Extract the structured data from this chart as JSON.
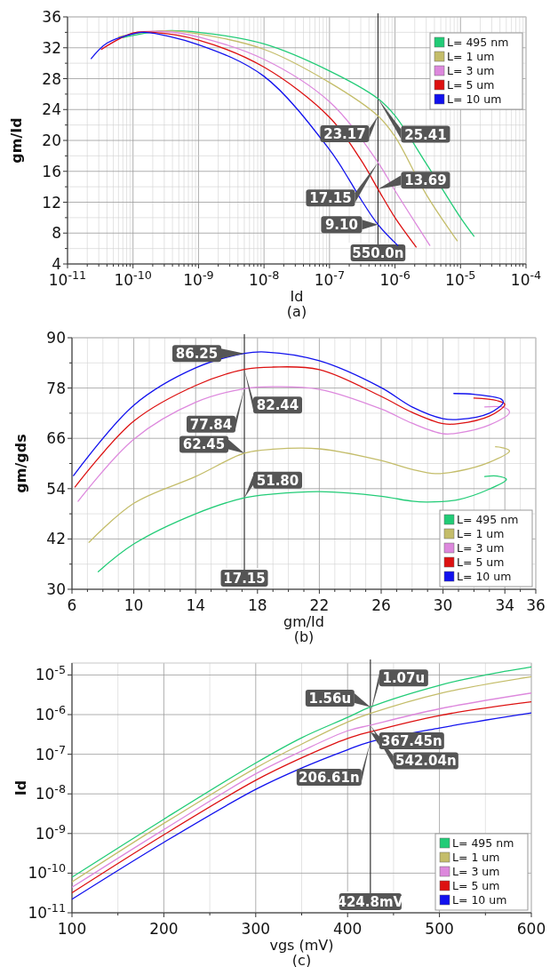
{
  "chart_data": [
    {
      "type": "line",
      "xlabel": "Id",
      "ylabel": "gm/Id",
      "log": "x",
      "grid": true,
      "legend": "top right",
      "xlim": [
        1e-11,
        0.0001
      ],
      "ylim": [
        4,
        36
      ],
      "xticks": [
        {
          "value": 1e-11,
          "label": "10$^{-11}$"
        },
        {
          "value": 1e-10,
          "label": "10$^{-10}$"
        },
        {
          "value": 1e-09,
          "label": "10$^{-9}$"
        },
        {
          "value": 1e-08,
          "label": "10$^{-8}$"
        },
        {
          "value": 1e-07,
          "label": "10$^{-7}$"
        },
        {
          "value": 1e-06,
          "label": "10$^{-6}$"
        },
        {
          "value": 1e-05,
          "label": "10$^{-5}$"
        },
        {
          "value": 0.0001,
          "label": "10$^{-4}$"
        },
        {
          "value": 2e-11,
          "label": null
        },
        {
          "value": 3e-11,
          "label": null
        },
        {
          "value": 4e-11,
          "label": null
        },
        {
          "value": 5e-11,
          "label": null
        },
        {
          "value": 6e-11,
          "label": null
        },
        {
          "value": 7e-11,
          "label": null
        },
        {
          "value": 8e-11,
          "label": null
        },
        {
          "value": 9e-11,
          "label": null
        },
        {
          "value": 2e-10,
          "label": null
        },
        {
          "value": 3e-10,
          "label": null
        },
        {
          "value": 4e-10,
          "label": null
        },
        {
          "value": 5e-10,
          "label": null
        },
        {
          "value": 6e-10,
          "label": null
        },
        {
          "value": 7e-10,
          "label": null
        },
        {
          "value": 8e-10,
          "label": null
        },
        {
          "value": 9e-10,
          "label": null
        },
        {
          "value": 2e-09,
          "label": null
        },
        {
          "value": 3e-09,
          "label": null
        },
        {
          "value": 4e-09,
          "label": null
        },
        {
          "value": 5e-09,
          "label": null
        },
        {
          "value": 6e-09,
          "label": null
        },
        {
          "value": 7e-09,
          "label": null
        },
        {
          "value": 8e-09,
          "label": null
        },
        {
          "value": 9e-09,
          "label": null
        },
        {
          "value": 2e-08,
          "label": null
        },
        {
          "value": 3e-08,
          "label": null
        },
        {
          "value": 4e-08,
          "label": null
        },
        {
          "value": 5e-08,
          "label": null
        },
        {
          "value": 6e-08,
          "label": null
        },
        {
          "value": 7e-08,
          "label": null
        },
        {
          "value": 8e-08,
          "label": null
        },
        {
          "value": 9e-08,
          "label": null
        },
        {
          "value": 2e-07,
          "label": null
        },
        {
          "value": 3e-07,
          "label": null
        },
        {
          "value": 4e-07,
          "label": null
        },
        {
          "value": 5e-07,
          "label": null
        },
        {
          "value": 6e-07,
          "label": null
        },
        {
          "value": 7e-07,
          "label": null
        },
        {
          "value": 8e-07,
          "label": null
        },
        {
          "value": 9e-07,
          "label": null
        },
        {
          "value": 2e-06,
          "label": null
        },
        {
          "value": 3e-06,
          "label": null
        },
        {
          "value": 4e-06,
          "label": null
        },
        {
          "value": 5e-06,
          "label": null
        },
        {
          "value": 6e-06,
          "label": null
        },
        {
          "value": 7e-06,
          "label": null
        },
        {
          "value": 8e-06,
          "label": null
        },
        {
          "value": 9e-06,
          "label": null
        },
        {
          "value": 2e-05,
          "label": null
        },
        {
          "value": 3e-05,
          "label": null
        },
        {
          "value": 4e-05,
          "label": null
        },
        {
          "value": 5e-05,
          "label": null
        },
        {
          "value": 6e-05,
          "label": null
        },
        {
          "value": 7e-05,
          "label": null
        },
        {
          "value": 8e-05,
          "label": null
        },
        {
          "value": 9e-05,
          "label": null
        }
      ],
      "yticks": [
        4,
        8,
        12,
        16,
        20,
        24,
        28,
        32,
        36,
        {
          "value": 6,
          "label": null
        },
        {
          "value": 10,
          "label": null
        },
        {
          "value": 14,
          "label": null
        },
        {
          "value": 18,
          "label": null
        },
        {
          "value": 22,
          "label": null
        },
        {
          "value": 26,
          "label": null
        },
        {
          "value": 30,
          "label": null
        },
        {
          "value": 34,
          "label": null
        }
      ],
      "series": [
        {
          "name": "L= 495 nm",
          "color": "#22cc77",
          "x": [
            7e-11,
            1e-10,
            3e-10,
            1e-09,
            1e-08,
            1e-07,
            5.5e-07,
            1e-06,
            3e-06,
            1e-05,
            1.6e-05
          ],
          "values": [
            33.3,
            33.6,
            34.2,
            34.0,
            32.5,
            29,
            25.41,
            23.2,
            17,
            10,
            7.6
          ]
        },
        {
          "name": "L= 1 um",
          "color": "#c4bd6a",
          "x": [
            6e-11,
            1e-10,
            3e-10,
            1e-09,
            1e-08,
            1e-07,
            5.5e-07,
            1e-06,
            3e-06,
            8.9e-06
          ],
          "values": [
            33.4,
            33.8,
            34.2,
            33.8,
            31.8,
            27.5,
            23.17,
            20.5,
            13,
            7.0
          ]
        },
        {
          "name": "L= 3 um",
          "color": "#dd88dd",
          "x": [
            3.3e-11,
            1e-10,
            3e-10,
            1e-09,
            1e-08,
            1e-07,
            5.5e-07,
            1e-06,
            3.4e-06
          ],
          "values": [
            31.8,
            33.9,
            34.1,
            33.4,
            30.5,
            25.0,
            17.15,
            13.5,
            6.4
          ]
        },
        {
          "name": "L= 5 um",
          "color": "#dd1111",
          "x": [
            3.3e-11,
            1e-10,
            2e-10,
            1e-09,
            1e-08,
            1e-07,
            3e-07,
            5.5e-07,
            1e-06,
            2.1e-06
          ],
          "values": [
            31.8,
            33.9,
            34.0,
            33.0,
            29.5,
            23.0,
            17.5,
            13.69,
            10,
            6.2
          ]
        },
        {
          "name": "L= 10 um",
          "color": "#1111ee",
          "x": [
            2.3e-11,
            4e-11,
            1e-10,
            1.5e-10,
            1e-09,
            1e-08,
            1e-07,
            2e-07,
            3e-07,
            5.5e-07,
            1.1e-06
          ],
          "values": [
            30.6,
            32.6,
            33.8,
            34.0,
            32.4,
            28.3,
            18.8,
            14.9,
            12.4,
            9.1,
            6.4
          ]
        }
      ],
      "ref_lines": [
        {
          "axis": "x",
          "value": 5.5e-07,
          "label": "550.0n",
          "color": "#333333"
        }
      ],
      "annotations": [
        {
          "text": "25.41",
          "x": 5.5e-07,
          "y": 25.41
        },
        {
          "text": "17.15",
          "x": 5.5e-07,
          "y": 17.15
        },
        {
          "text": "23.17",
          "x": 5.5e-07,
          "y": 23.17
        },
        {
          "text": "9.10",
          "x": 5.5e-07,
          "y": 9.1
        },
        {
          "text": "13.69",
          "x": 5.5e-07,
          "y": 13.69
        },
        "(a)"
      ]
    },
    {
      "type": "line",
      "xlabel": "gm/Id",
      "ylabel": "gm/gds",
      "grid": true,
      "legend": "bottom right",
      "xlim": [
        6,
        36
      ],
      "ylim": [
        30,
        90
      ],
      "xticks": [
        6,
        10,
        14,
        18,
        22,
        26,
        30,
        34,
        36,
        {
          "value": 7,
          "label": null
        },
        {
          "value": 8,
          "label": null
        },
        {
          "value": 9,
          "label": null
        },
        {
          "value": 11,
          "label": null
        },
        {
          "value": 12,
          "label": null
        },
        {
          "value": 13,
          "label": null
        },
        {
          "value": 15,
          "label": null
        },
        {
          "value": 16,
          "label": null
        },
        {
          "value": 17,
          "label": null
        },
        {
          "value": 19,
          "label": null
        },
        {
          "value": 20,
          "label": null
        },
        {
          "value": 21,
          "label": null
        },
        {
          "value": 23,
          "label": null
        },
        {
          "value": 24,
          "label": null
        },
        {
          "value": 25,
          "label": null
        },
        {
          "value": 27,
          "label": null
        },
        {
          "value": 28,
          "label": null
        },
        {
          "value": 29,
          "label": null
        },
        {
          "value": 31,
          "label": null
        },
        {
          "value": 32,
          "label": null
        },
        {
          "value": 33,
          "label": null
        },
        {
          "value": 35,
          "label": null
        }
      ],
      "yticks": [
        30,
        42,
        54,
        66,
        78,
        90,
        {
          "value": 36,
          "label": null
        },
        {
          "value": 48,
          "label": null
        },
        {
          "value": 60,
          "label": null
        },
        {
          "value": 72,
          "label": null
        },
        {
          "value": 84,
          "label": null
        }
      ],
      "series": [
        {
          "name": "L= 495 nm",
          "color": "#22cc77",
          "x": [
            7.7,
            10,
            14,
            17.15,
            19,
            22,
            26,
            28,
            29,
            31,
            33,
            34.1,
            33.5,
            32.7
          ],
          "values": [
            34.2,
            40.8,
            48.0,
            51.8,
            52.7,
            53.3,
            52.2,
            51.0,
            50.8,
            51.4,
            53.9,
            56.2,
            57,
            56.9
          ]
        },
        {
          "name": "L= 1 um",
          "color": "#c4bd6a",
          "x": [
            7.1,
            10,
            14,
            17.15,
            19,
            22,
            26,
            28,
            29.5,
            31,
            33,
            34.3,
            33.8,
            33.4
          ],
          "values": [
            41.2,
            50.5,
            56.9,
            62.45,
            63.4,
            63.5,
            60.7,
            58.6,
            57.6,
            58.2,
            60.3,
            63.0,
            63.8,
            64.0
          ]
        },
        {
          "name": "L= 3 um",
          "color": "#dd88dd",
          "x": [
            6.4,
            10,
            14,
            17.15,
            19,
            22,
            26,
            28,
            30,
            31,
            33,
            34.3,
            34,
            32.7
          ],
          "values": [
            51.0,
            65.8,
            74.6,
            77.84,
            78.3,
            77.7,
            73.0,
            69.6,
            67.1,
            67.3,
            69.2,
            72.2,
            73.3,
            73.5
          ]
        },
        {
          "name": "L= 5 um",
          "color": "#dd1111",
          "x": [
            6.2,
            10,
            14,
            17.15,
            19,
            22,
            26,
            28,
            30,
            31,
            33,
            34.0,
            33.5,
            32.0
          ],
          "values": [
            54.4,
            70.1,
            78.6,
            82.44,
            83.0,
            82.4,
            76.0,
            72.2,
            69.5,
            69.5,
            71.3,
            74.1,
            75,
            75.6
          ]
        },
        {
          "name": "L= 10 um",
          "color": "#1111ee",
          "x": [
            6.1,
            10,
            14,
            17.15,
            18.5,
            22,
            26,
            28,
            30,
            31,
            33,
            33.9,
            33.75,
            32,
            30.7
          ],
          "values": [
            57.1,
            73.9,
            82.8,
            86.25,
            86.6,
            84.5,
            78.1,
            73.5,
            70.7,
            70.5,
            72,
            74.6,
            75.4,
            76.5,
            76.7
          ]
        }
      ],
      "ref_lines": [
        {
          "axis": "x",
          "value": 17.15,
          "label": "17.15",
          "color": "#333333"
        }
      ],
      "annotations": [
        {
          "text": "86.25",
          "x": 17.15,
          "y": 86.25
        },
        {
          "text": "82.44",
          "x": 17.15,
          "y": 82.44
        },
        {
          "text": "77.84",
          "x": 17.15,
          "y": 77.84
        },
        {
          "text": "62.45",
          "x": 17.15,
          "y": 62.45
        },
        {
          "text": "51.80",
          "x": 17.15,
          "y": 51.8
        },
        "(b)"
      ]
    },
    {
      "type": "line",
      "xlabel": "vgs (mV)",
      "ylabel": "Id",
      "log": "y",
      "grid": true,
      "legend": "bottom right",
      "xlim": [
        100,
        600
      ],
      "ylim": [
        1e-11,
        2e-05
      ],
      "xticks": [
        100,
        200,
        300,
        400,
        500,
        600,
        {
          "value": 150,
          "label": null
        },
        {
          "value": 250,
          "label": null
        },
        {
          "value": 350,
          "label": null
        },
        {
          "value": 450,
          "label": null
        },
        {
          "value": 550,
          "label": null
        }
      ],
      "yticks": [
        {
          "value": 1e-11,
          "label": "10$^{-11}$"
        },
        {
          "value": 1e-10,
          "label": "10$^{-10}$"
        },
        {
          "value": 1e-09,
          "label": "10$^{-9}$"
        },
        {
          "value": 1e-08,
          "label": "10$^{-8}$"
        },
        {
          "value": 1e-07,
          "label": "10$^{-7}$"
        },
        {
          "value": 1e-06,
          "label": "10$^{-6}$"
        },
        {
          "value": 1e-05,
          "label": "10$^{-5}$"
        }
      ],
      "series": [
        {
          "name": "L= 495 nm",
          "color": "#22cc77",
          "x": [
            100,
            200,
            300,
            350,
            400,
            424.8,
            500,
            550,
            600
          ],
          "values": [
            7.9e-11,
            2.3e-09,
            6e-08,
            2.6e-07,
            8.5e-07,
            1.56e-06,
            5.5e-06,
            1e-05,
            1.6e-05
          ]
        },
        {
          "name": "L= 1 um",
          "color": "#c4bd6a",
          "x": [
            100,
            200,
            300,
            350,
            400,
            424.8,
            500,
            600
          ],
          "values": [
            6e-11,
            1.8e-09,
            4.5e-08,
            1.8e-07,
            6.5e-07,
            1.07e-06,
            3.4e-06,
            9e-06
          ]
        },
        {
          "name": "L= 3 um",
          "color": "#dd88dd",
          "x": [
            100,
            200,
            300,
            350,
            400,
            424.8,
            500,
            600
          ],
          "values": [
            4.4e-11,
            1.26e-09,
            3.2e-08,
            1.2e-07,
            3.9e-07,
            5.4204e-07,
            1.4e-06,
            3.5e-06
          ]
        },
        {
          "name": "L= 5 um",
          "color": "#dd1111",
          "x": [
            100,
            200,
            300,
            350,
            400,
            424.8,
            500,
            600
          ],
          "values": [
            3.2e-11,
            9.3e-10,
            2.2e-08,
            8.1e-08,
            2.5e-07,
            3.6745e-07,
            9.5e-07,
            2.1e-06
          ]
        },
        {
          "name": "L= 10 um",
          "color": "#1111ee",
          "x": [
            100,
            200,
            300,
            350,
            400,
            424.8,
            500,
            600
          ],
          "values": [
            2.2e-11,
            6e-10,
            1.3e-08,
            4.5e-08,
            1.3e-07,
            2.0661e-07,
            4.6e-07,
            1.1e-06
          ]
        }
      ],
      "ref_lines": [
        {
          "axis": "x",
          "value": 424.8,
          "label": "424.8mV",
          "color": "#333333"
        }
      ],
      "annotations": [
        {
          "text": "1.56u",
          "x": 424.8,
          "y": 1.56e-06
        },
        {
          "text": "1.07u",
          "x": 424.8,
          "y": 1.07e-06
        },
        {
          "text": "542.04n",
          "x": 424.8,
          "y": 5.4204e-07
        },
        {
          "text": "367.45n",
          "x": 424.8,
          "y": 3.6745e-07
        },
        {
          "text": "206.61n",
          "x": 424.8,
          "y": 2.0661e-07
        },
        "(c)"
      ]
    }
  ]
}
